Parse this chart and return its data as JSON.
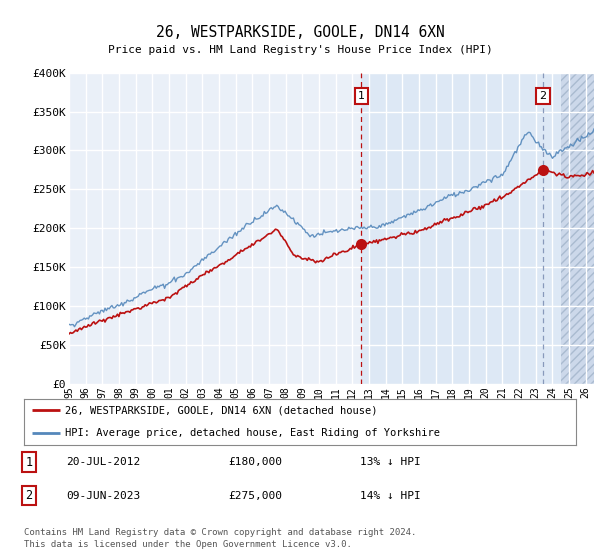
{
  "title": "26, WESTPARKSIDE, GOOLE, DN14 6XN",
  "subtitle": "Price paid vs. HM Land Registry's House Price Index (HPI)",
  "ylim": [
    0,
    400000
  ],
  "yticks": [
    0,
    50000,
    100000,
    150000,
    200000,
    250000,
    300000,
    350000,
    400000
  ],
  "ytick_labels": [
    "£0",
    "£50K",
    "£100K",
    "£150K",
    "£200K",
    "£250K",
    "£300K",
    "£350K",
    "£400K"
  ],
  "xlim_start": 1995.0,
  "xlim_end": 2026.5,
  "xticks": [
    1995,
    1996,
    1997,
    1998,
    1999,
    2000,
    2001,
    2002,
    2003,
    2004,
    2005,
    2006,
    2007,
    2008,
    2009,
    2010,
    2011,
    2012,
    2013,
    2014,
    2015,
    2016,
    2017,
    2018,
    2019,
    2020,
    2021,
    2022,
    2023,
    2024,
    2025,
    2026
  ],
  "sale1_date": 2012.55,
  "sale1_price": 180000,
  "sale1_label": "1",
  "sale2_date": 2023.44,
  "sale2_price": 275000,
  "sale2_label": "2",
  "hpi_color": "#5588bb",
  "price_color": "#bb1111",
  "sale2_vline_color": "#8899bb",
  "annotation_box_color": "#bb1111",
  "background_plot": "#dde8f5",
  "background_early": "#e8eef7",
  "background_hatch_color": "#c0cfe0",
  "grid_color": "#ffffff",
  "legend_label_price": "26, WESTPARKSIDE, GOOLE, DN14 6XN (detached house)",
  "legend_label_hpi": "HPI: Average price, detached house, East Riding of Yorkshire",
  "footer": "Contains HM Land Registry data © Crown copyright and database right 2024.\nThis data is licensed under the Open Government Licence v3.0.",
  "annotation1_date": "20-JUL-2012",
  "annotation1_price": "£180,000",
  "annotation1_hpi": "13% ↓ HPI",
  "annotation2_date": "09-JUN-2023",
  "annotation2_price": "£275,000",
  "annotation2_hpi": "14% ↓ HPI"
}
